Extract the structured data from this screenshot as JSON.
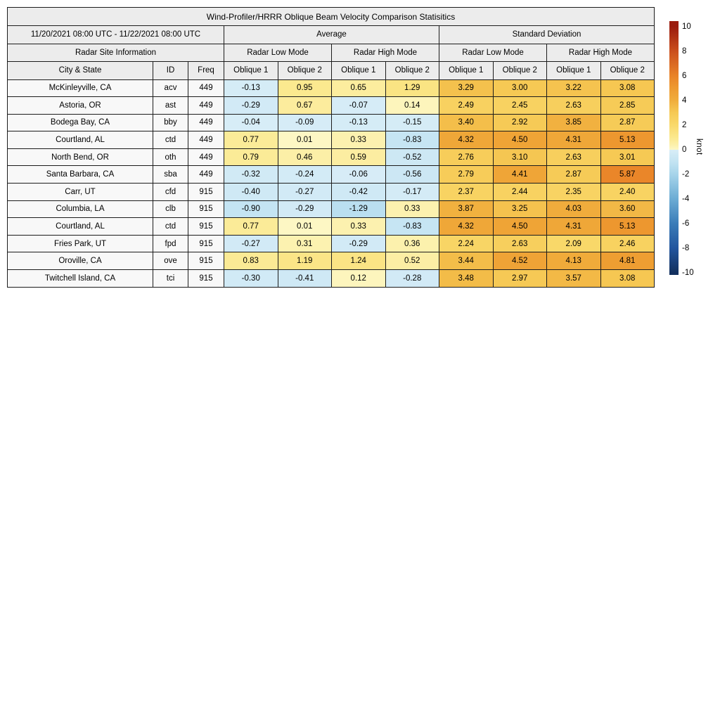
{
  "chart_data": {
    "type": "table",
    "title": "Wind-Profiler/HRRR Oblique Beam Velocity Comparison Statisitics",
    "period": "11/20/2021 08:00 UTC - 11/22/2021 08:00 UTC",
    "group_headers": {
      "average": "Average",
      "standard_deviation": "Standard Deviation",
      "site_info": "Radar Site Information",
      "low_mode": "Radar Low Mode",
      "high_mode": "Radar High Mode"
    },
    "columns": {
      "city": "City & State",
      "id": "ID",
      "freq": "Freq",
      "oblique1": "Oblique 1",
      "oblique2": "Oblique 2"
    },
    "colorbar": {
      "unit": "knot",
      "vmin": -10,
      "vmax": 10,
      "ticks": [
        10,
        8,
        6,
        4,
        2,
        0,
        -2,
        -4,
        -6,
        -8,
        -10
      ],
      "stops": [
        [
          10,
          "#9b1c0e"
        ],
        [
          8,
          "#cb4f1c"
        ],
        [
          6,
          "#e98328"
        ],
        [
          5,
          "#ee9a30"
        ],
        [
          4,
          "#f0ad3c"
        ],
        [
          3,
          "#f6c954"
        ],
        [
          2,
          "#f9d96b"
        ],
        [
          1,
          "#fbe88d"
        ],
        [
          0.4,
          "#fcf0aa"
        ],
        [
          0.001,
          "#fdf7c5"
        ],
        [
          -0.001,
          "#d8edf7"
        ],
        [
          -1,
          "#c2e3f2"
        ],
        [
          -2,
          "#a6d4ea"
        ],
        [
          -4,
          "#6cacd4"
        ],
        [
          -6,
          "#3a7cb8"
        ],
        [
          -8,
          "#21559e"
        ],
        [
          -10,
          "#12305e"
        ]
      ]
    },
    "rows": [
      {
        "city": "McKinleyville, CA",
        "id": "acv",
        "freq": "449",
        "values": [
          -0.13,
          0.95,
          0.65,
          1.29,
          3.29,
          3.0,
          3.22,
          3.08
        ]
      },
      {
        "city": "Astoria, OR",
        "id": "ast",
        "freq": "449",
        "values": [
          -0.29,
          0.67,
          -0.07,
          0.14,
          2.49,
          2.45,
          2.63,
          2.85
        ]
      },
      {
        "city": "Bodega Bay, CA",
        "id": "bby",
        "freq": "449",
        "values": [
          -0.04,
          -0.09,
          -0.13,
          -0.15,
          3.4,
          2.92,
          3.85,
          2.87
        ]
      },
      {
        "city": "Courtland, AL",
        "id": "ctd",
        "freq": "449",
        "values": [
          0.77,
          0.01,
          0.33,
          -0.83,
          4.32,
          4.5,
          4.31,
          5.13
        ]
      },
      {
        "city": "North Bend, OR",
        "id": "oth",
        "freq": "449",
        "values": [
          0.79,
          0.46,
          0.59,
          -0.52,
          2.76,
          3.1,
          2.63,
          3.01
        ]
      },
      {
        "city": "Santa Barbara, CA",
        "id": "sba",
        "freq": "449",
        "values": [
          -0.32,
          -0.24,
          -0.06,
          -0.56,
          2.79,
          4.41,
          2.87,
          5.87
        ]
      },
      {
        "city": "Carr, UT",
        "id": "cfd",
        "freq": "915",
        "values": [
          -0.4,
          -0.27,
          -0.42,
          -0.17,
          2.37,
          2.44,
          2.35,
          2.4
        ]
      },
      {
        "city": "Columbia, LA",
        "id": "clb",
        "freq": "915",
        "values": [
          -0.9,
          -0.29,
          -1.29,
          0.33,
          3.87,
          3.25,
          4.03,
          3.6
        ]
      },
      {
        "city": "Courtland, AL",
        "id": "ctd",
        "freq": "915",
        "values": [
          0.77,
          0.01,
          0.33,
          -0.83,
          4.32,
          4.5,
          4.31,
          5.13
        ]
      },
      {
        "city": "Fries Park, UT",
        "id": "fpd",
        "freq": "915",
        "values": [
          -0.27,
          0.31,
          -0.29,
          0.36,
          2.24,
          2.63,
          2.09,
          2.46
        ]
      },
      {
        "city": "Oroville, CA",
        "id": "ove",
        "freq": "915",
        "values": [
          0.83,
          1.19,
          1.24,
          0.52,
          3.44,
          4.52,
          4.13,
          4.81
        ]
      },
      {
        "city": "Twitchell Island, CA",
        "id": "tci",
        "freq": "915",
        "values": [
          -0.3,
          -0.41,
          0.12,
          -0.28,
          3.48,
          2.97,
          3.57,
          3.08
        ]
      }
    ]
  }
}
